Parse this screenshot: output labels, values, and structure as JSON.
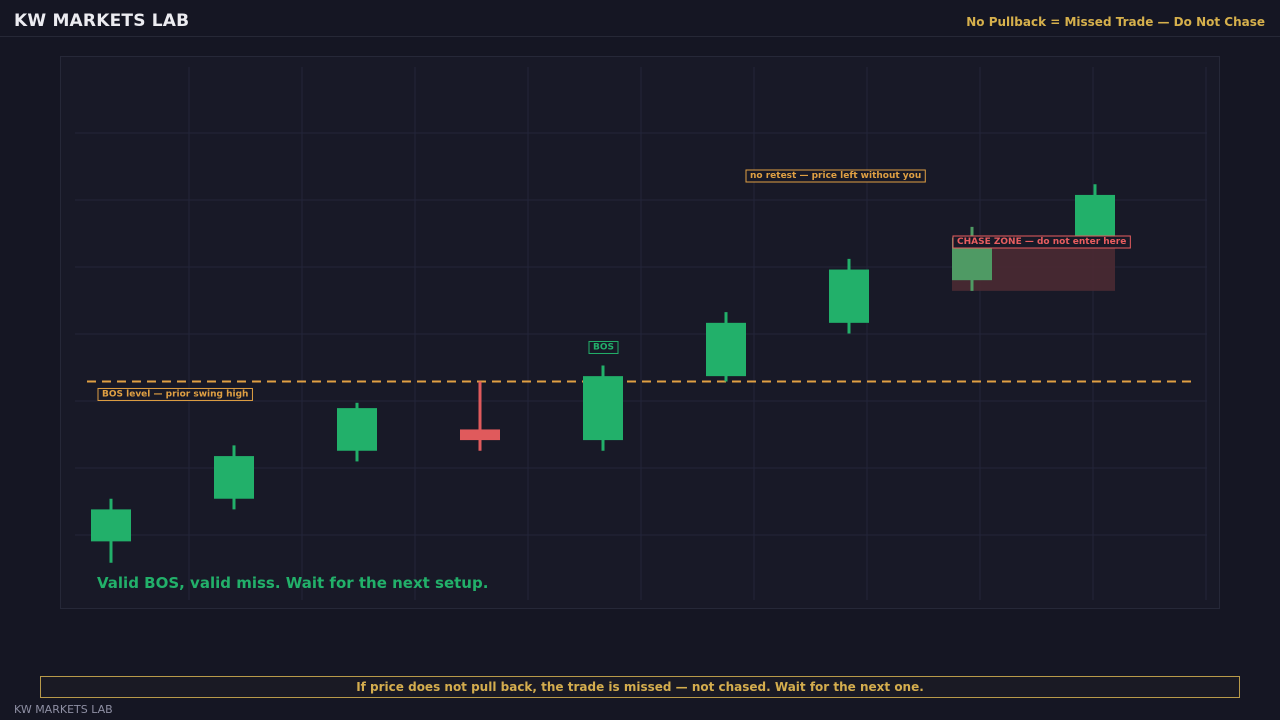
{
  "header": {
    "brand": "KW MARKETS LAB",
    "tagline": "No Pullback = Missed Trade — Do Not Chase"
  },
  "footer": {
    "banner": "If price does not pull back, the trade is missed — not chased. Wait for the next one.",
    "brand": "KW MARKETS LAB"
  },
  "chart_data": {
    "type": "candlestick",
    "title": "",
    "xlabel": "",
    "ylabel": "",
    "grid": true,
    "ylim": [
      0,
      100
    ],
    "candles": [
      {
        "open": 11,
        "close": 17,
        "high": 19,
        "low": 7
      },
      {
        "open": 19,
        "close": 27,
        "high": 29,
        "low": 17
      },
      {
        "open": 28,
        "close": 36,
        "high": 37,
        "low": 26
      },
      {
        "open": 32,
        "close": 30,
        "high": 41,
        "low": 28
      },
      {
        "open": 30,
        "close": 42,
        "high": 44,
        "low": 28
      },
      {
        "open": 42,
        "close": 52,
        "high": 54,
        "low": 41
      },
      {
        "open": 52,
        "close": 62,
        "high": 64,
        "low": 50
      },
      {
        "open": 60,
        "close": 68,
        "high": 70,
        "low": 58
      },
      {
        "open": 68,
        "close": 76,
        "high": 78,
        "low": 66
      }
    ],
    "bos_level": 41,
    "chase_zone": {
      "from_candle": 7,
      "to_candle": 8,
      "low": 58,
      "high": 68
    },
    "annotations": {
      "bos_marker": "BOS",
      "bos_level_label": "BOS level — prior swing high",
      "no_retest_label": "no retest — price left without you",
      "chase_zone_label": "CHASE ZONE — do not enter here",
      "summary": "Valid BOS, valid miss. Wait for the next setup."
    },
    "colors": {
      "bull": "#22b06a",
      "bear": "#e05a5c",
      "chase_candle": "#4f9a64",
      "level": "#e0a043",
      "chase_zone": "#4a2a33",
      "chase_label": "#e85d5f",
      "summary": "#22b06a",
      "grid": "#23253a"
    }
  }
}
